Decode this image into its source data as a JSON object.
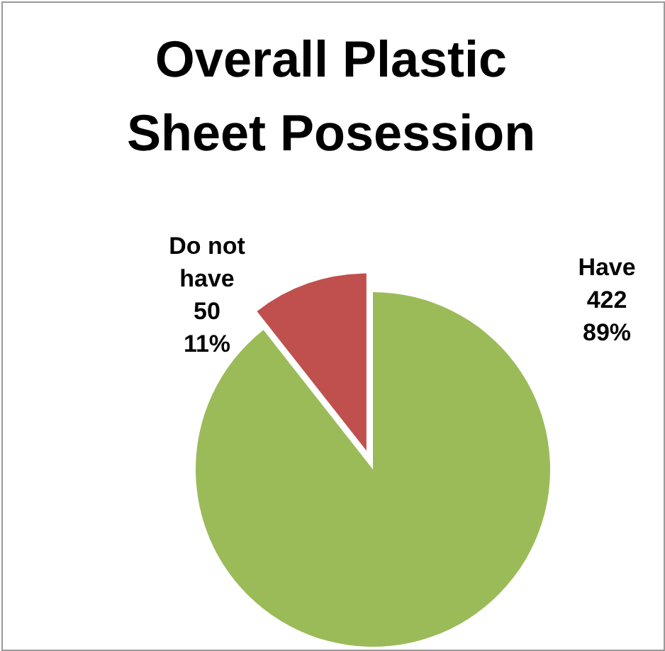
{
  "chart_data": {
    "type": "pie",
    "title": "Overall Plastic Sheet Posession",
    "categories": [
      "Have",
      "Do not have"
    ],
    "values": [
      422,
      50
    ],
    "colors": [
      "#9bbb59",
      "#c0504d"
    ],
    "value_labels": [
      "422\n89%",
      "50\n11%"
    ]
  }
}
